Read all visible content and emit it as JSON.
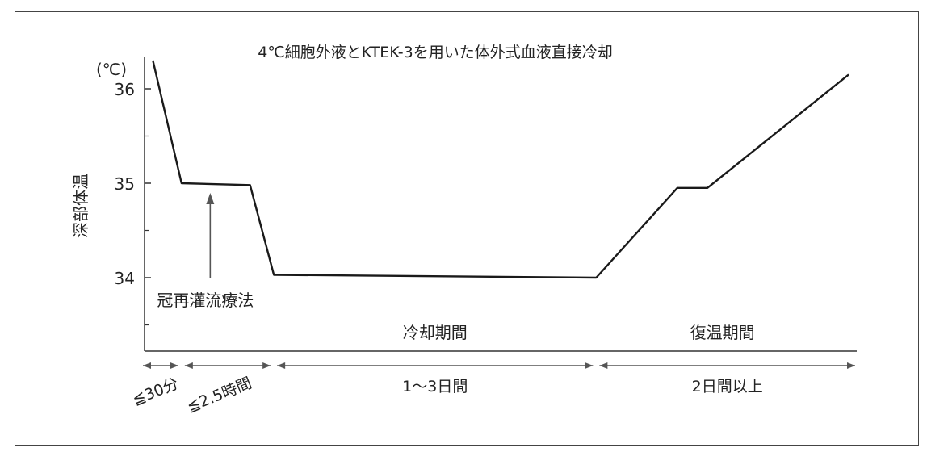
{
  "chart_data": {
    "type": "line",
    "title": "4℃細胞外液とKTEK-3を用いた体外式血液直接冷却",
    "ylabel": "深部体温",
    "yunit": "(℃)",
    "xlabel": "",
    "yticks": [
      34,
      35,
      36
    ],
    "ylim": [
      33.3,
      36.3
    ],
    "xlim": [
      0,
      100
    ],
    "grid": false,
    "legend": "none",
    "series": [
      {
        "name": "",
        "x": [
          0.5,
          4.6,
          14.4,
          17.8,
          63.9,
          75.5,
          79.8,
          100
        ],
        "y": [
          36.3,
          35.0,
          34.98,
          34.03,
          34.0,
          34.95,
          34.95,
          36.15
        ]
      }
    ],
    "annotations": [
      {
        "text": "冠再灌流療法",
        "x": 8.7,
        "y": 35.0
      }
    ],
    "phases": [
      {
        "label": "冷却期間",
        "x_start": 17.8,
        "x_end": 63.9
      },
      {
        "label": "復温期間",
        "x_start": 63.9,
        "x_end": 100
      }
    ],
    "durations": [
      {
        "label": "≦30分",
        "x_start": 0,
        "x_end": 4.6
      },
      {
        "label": "≦2.5時間",
        "x_start": 4.6,
        "x_end": 17.8
      },
      {
        "label": "1～3日間",
        "x_start": 17.8,
        "x_end": 63.9
      },
      {
        "label": "2日間以上",
        "x_start": 63.9,
        "x_end": 100
      }
    ],
    "colors": {
      "line": "#1a1a1a",
      "axis": "#333333",
      "arrow": "#555555"
    }
  }
}
